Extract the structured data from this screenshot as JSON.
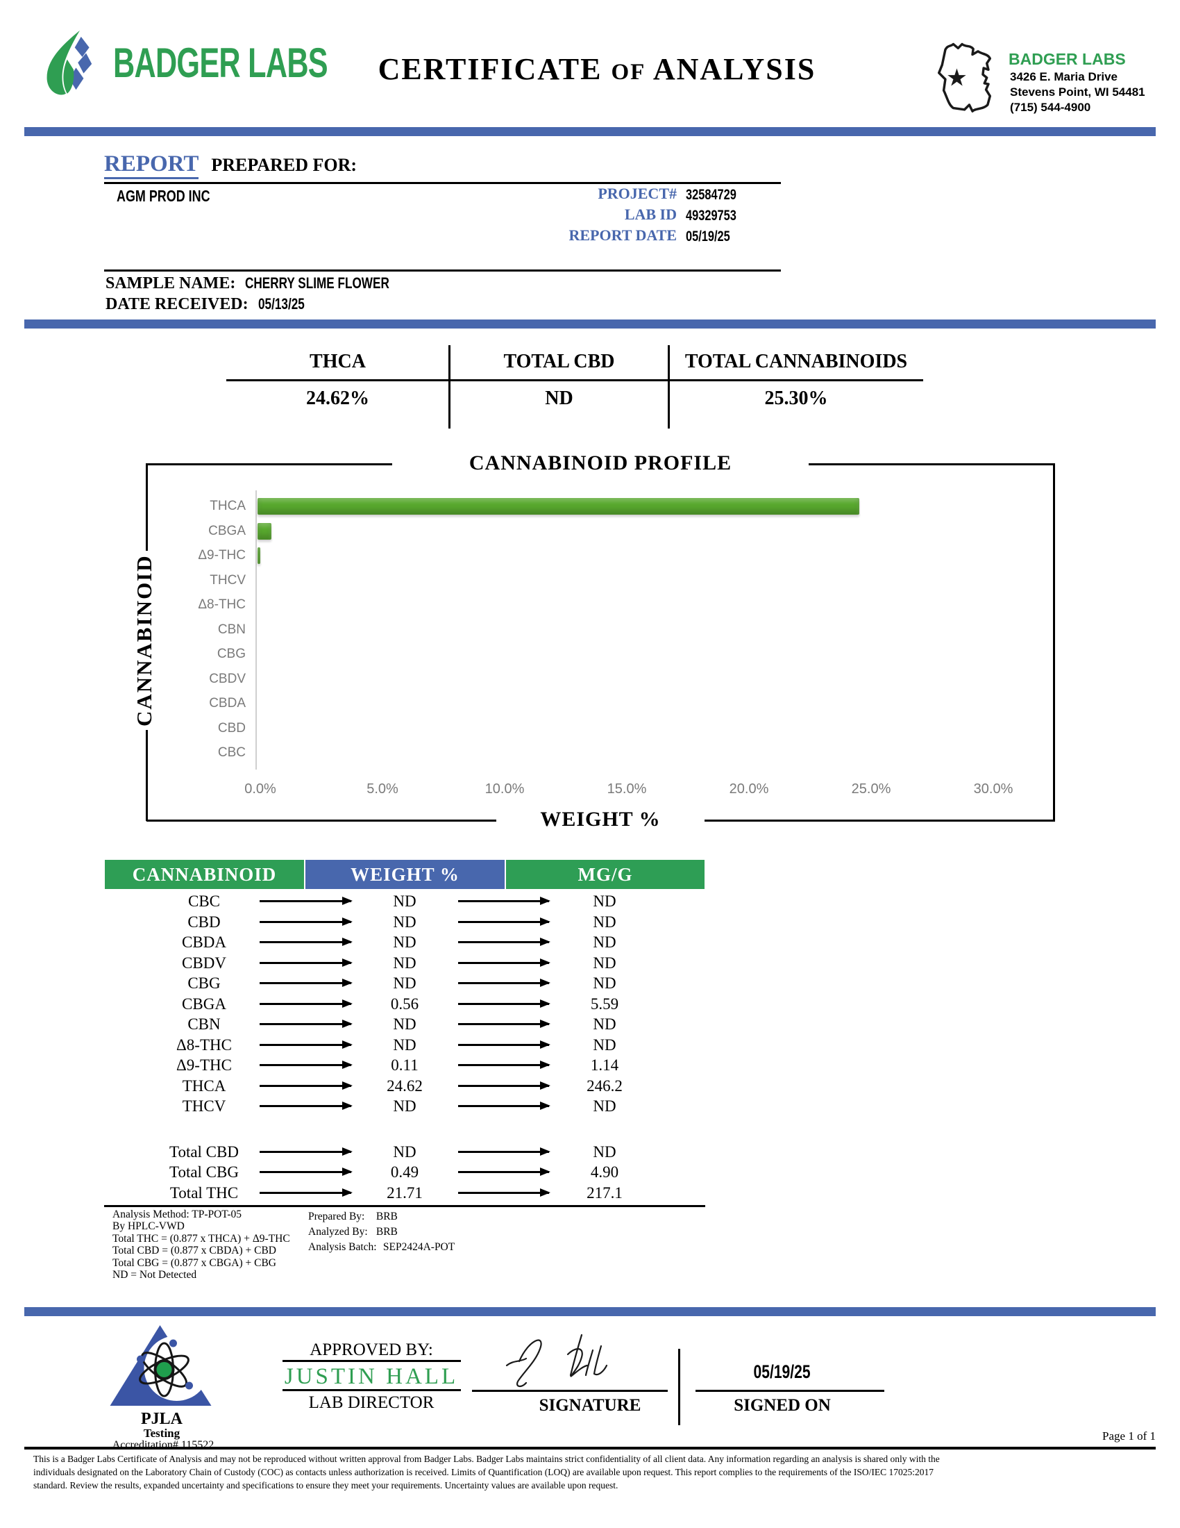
{
  "colors": {
    "blue": "#4867ad",
    "green": "#2e9e55",
    "bar_green": "#58a82e",
    "gray_label": "#7a7a7a"
  },
  "header": {
    "logo_text": "BADGER LABS",
    "title": {
      "part1": "CERTIFICATE",
      "of": "OF",
      "part2": "ANALYSIS"
    },
    "lab": {
      "name": "BADGER LABS",
      "address1": "3426 E. Maria Drive",
      "address2": "Stevens Point, WI 54481",
      "phone": "(715) 544-4900"
    }
  },
  "report": {
    "heading_report": "REPORT",
    "heading_prepared": "PREPARED FOR:",
    "client": "AGM PROD INC",
    "project_label": "PROJECT#",
    "project_value": "32584729",
    "labid_label": "LAB ID",
    "labid_value": "49329753",
    "reportdate_label": "REPORT DATE",
    "reportdate_value": "05/19/25",
    "sample_label": "SAMPLE NAME:",
    "sample_value": "CHERRY SLIME FLOWER",
    "received_label": "DATE RECEIVED:",
    "received_value": "05/13/25"
  },
  "summary": {
    "columns": [
      {
        "label": "THCA",
        "value": "24.62%"
      },
      {
        "label": "TOTAL CBD",
        "value": "ND"
      },
      {
        "label": "TOTAL CANNABINOIDS",
        "value": "25.30%"
      }
    ]
  },
  "chart_data": {
    "type": "bar",
    "orientation": "horizontal",
    "title": "CANNABINOID PROFILE",
    "xlabel": "WEIGHT %",
    "ylabel": "CANNABINOID",
    "categories": [
      "THCA",
      "CBGA",
      "Δ9-THC",
      "THCV",
      "Δ8-THC",
      "CBN",
      "CBG",
      "CBDV",
      "CBDA",
      "CBD",
      "CBC"
    ],
    "values": [
      24.62,
      0.56,
      0.11,
      0,
      0,
      0,
      0,
      0,
      0,
      0,
      0
    ],
    "nd_note": "ND entries drawn with no bar (0)",
    "xlim": [
      0,
      30
    ],
    "xtick_interval": 5,
    "xticks": [
      "0.0%",
      "5.0%",
      "10.0%",
      "15.0%",
      "20.0%",
      "25.0%",
      "30.0%"
    ],
    "grid": false,
    "legend": false,
    "bar_color": "#58a82e"
  },
  "table": {
    "headers": [
      "CANNABINOID",
      "WEIGHT %",
      "MG/G"
    ],
    "rows": [
      [
        "CBC",
        "ND",
        "ND"
      ],
      [
        "CBD",
        "ND",
        "ND"
      ],
      [
        "CBDA",
        "ND",
        "ND"
      ],
      [
        "CBDV",
        "ND",
        "ND"
      ],
      [
        "CBG",
        "ND",
        "ND"
      ],
      [
        "CBGA",
        "0.56",
        "5.59"
      ],
      [
        "CBN",
        "ND",
        "ND"
      ],
      [
        "Δ8-THC",
        "ND",
        "ND"
      ],
      [
        "Δ9-THC",
        "0.11",
        "1.14"
      ],
      [
        "THCA",
        "24.62",
        "246.2"
      ],
      [
        "THCV",
        "ND",
        "ND"
      ]
    ],
    "total_rows": [
      [
        "Total CBD",
        "ND",
        "ND"
      ],
      [
        "Total CBG",
        "0.49",
        "4.90"
      ],
      [
        "Total THC",
        "21.71",
        "217.1"
      ]
    ]
  },
  "footnotes": {
    "left": [
      "Analysis Method: TP-POT-05",
      "By HPLC-VWD",
      "Total THC = (0.877 x  THCA) + Δ9-THC",
      "Total CBD = (0.877 x  CBDA) + CBD",
      "Total CBG = (0.877 x  CBGA) + CBG",
      "ND = Not Detected"
    ],
    "right": [
      {
        "label": "Prepared By:",
        "value": "BRB"
      },
      {
        "label": "Analyzed By:",
        "value": "BRB"
      },
      {
        "label": "Analysis Batch:",
        "value": "SEP2424A-POT"
      }
    ]
  },
  "footer": {
    "pjla": {
      "name": "PJLA",
      "sub": "Testing",
      "accreditation": "Accreditation# 115522"
    },
    "approved_by_label": "APPROVED BY:",
    "approver": "JUSTIN HALL",
    "approver_title": "LAB DIRECTOR",
    "signature_label": "SIGNATURE",
    "signed_on_value": "05/19/25",
    "signed_on_label": "SIGNED ON",
    "page": "Page 1 of 1"
  },
  "disclaimer": {
    "lines": [
      "This is a Badger Labs Certificate of  Analysis and may not be reproduced without written approval from Badger Labs. Badger Labs maintains strict confidentiality of  all client data. Any information regarding an analysis is shared only with the",
      "individuals designated on the Laboratory Chain of  Custody (COC) as contacts unless authorization is received. Limits of  Quantification (LOQ) are available upon request. This report complies to the requirements of  the ISO/IEC 17025:2017",
      "standard. Review the results, expanded uncertainty and specifications to ensure they meet your requirements. Uncertainty values are available upon request."
    ]
  }
}
